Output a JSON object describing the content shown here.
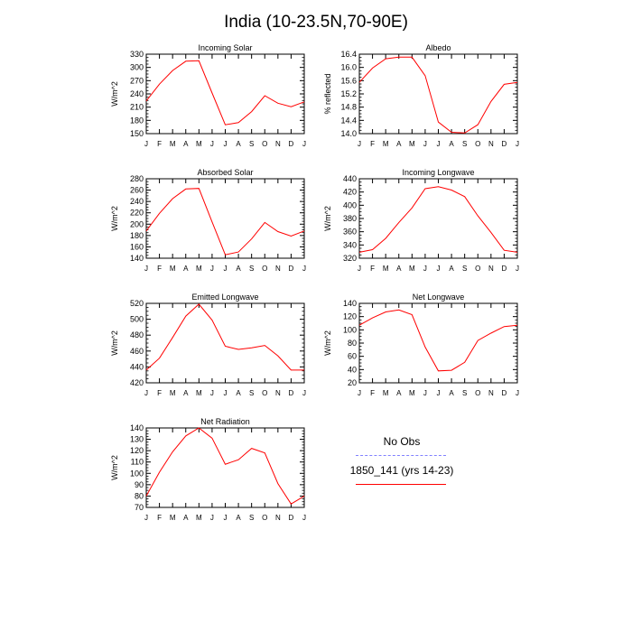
{
  "title": "India (10-23.5N,70-90E)",
  "months": [
    "J",
    "F",
    "M",
    "A",
    "M",
    "J",
    "J",
    "A",
    "S",
    "O",
    "N",
    "D",
    "J"
  ],
  "colors": {
    "model": "#ff0000",
    "obs": "#8080ff",
    "axis": "#000000"
  },
  "legend": {
    "obs_label": "No Obs",
    "model_label": "1850_141 (yrs 14-23)"
  },
  "chart_data": [
    {
      "type": "line",
      "title": "Incoming Solar",
      "ylabel": "W/m^2",
      "ylim": [
        150,
        330
      ],
      "yticks": [
        150,
        180,
        210,
        240,
        270,
        300,
        330
      ],
      "series": [
        {
          "name": "1850_141 (yrs 14-23)",
          "values": [
            224,
            262,
            293,
            314,
            315,
            242,
            170,
            175,
            200,
            236,
            219,
            211,
            222
          ]
        }
      ]
    },
    {
      "type": "line",
      "title": "Albedo",
      "ylabel": "% reflected",
      "ylim": [
        14.0,
        16.4
      ],
      "yticks": [
        "14.0",
        "14.4",
        "14.8",
        "15.2",
        "15.6",
        "16.0",
        "16.4"
      ],
      "series": [
        {
          "name": "1850_141 (yrs 14-23)",
          "values": [
            15.55,
            15.98,
            16.26,
            16.31,
            16.31,
            15.75,
            14.35,
            14.04,
            14.02,
            14.27,
            14.97,
            15.49,
            15.55
          ]
        }
      ]
    },
    {
      "type": "line",
      "title": "Absorbed Solar",
      "ylabel": "W/m^2",
      "ylim": [
        140,
        280
      ],
      "yticks": [
        140,
        160,
        180,
        200,
        220,
        240,
        260,
        280
      ],
      "series": [
        {
          "name": "1850_141 (yrs 14-23)",
          "values": [
            188,
            219,
            245,
            262,
            263,
            204,
            146,
            151,
            174,
            203,
            187,
            179,
            188
          ]
        }
      ]
    },
    {
      "type": "line",
      "title": "Incoming Longwave",
      "ylabel": "W/m^2",
      "ylim": [
        320,
        440
      ],
      "yticks": [
        320,
        340,
        360,
        380,
        400,
        420,
        440
      ],
      "series": [
        {
          "name": "1850_141 (yrs 14-23)",
          "values": [
            329,
            333,
            350,
            374,
            396,
            425,
            428,
            423,
            413,
            384,
            359,
            332,
            329
          ]
        }
      ]
    },
    {
      "type": "line",
      "title": "Emitted Longwave",
      "ylabel": "W/m^2",
      "ylim": [
        420,
        520
      ],
      "yticks": [
        420,
        440,
        460,
        480,
        500,
        520
      ],
      "series": [
        {
          "name": "1850_141 (yrs 14-23)",
          "values": [
            436,
            451,
            477,
            504,
            519,
            499,
            466,
            462,
            464,
            467,
            454,
            436,
            436
          ]
        }
      ]
    },
    {
      "type": "line",
      "title": "Net Longwave",
      "ylabel": "W/m^2",
      "ylim": [
        20,
        140
      ],
      "yticks": [
        20,
        40,
        60,
        80,
        100,
        120,
        140
      ],
      "series": [
        {
          "name": "1850_141 (yrs 14-23)",
          "values": [
            107,
            118,
            127,
            130,
            123,
            74,
            38,
            39,
            51,
            84,
            95,
            105,
            107
          ]
        }
      ]
    },
    {
      "type": "line",
      "title": "Net Radiation",
      "ylabel": "W/m^2",
      "ylim": [
        70,
        140
      ],
      "yticks": [
        70,
        80,
        90,
        100,
        110,
        120,
        130,
        140
      ],
      "series": [
        {
          "name": "1850_141 (yrs 14-23)",
          "values": [
            80,
            101,
            119,
            133,
            140,
            131,
            108,
            112,
            122,
            118,
            91,
            73,
            80
          ]
        }
      ]
    }
  ]
}
